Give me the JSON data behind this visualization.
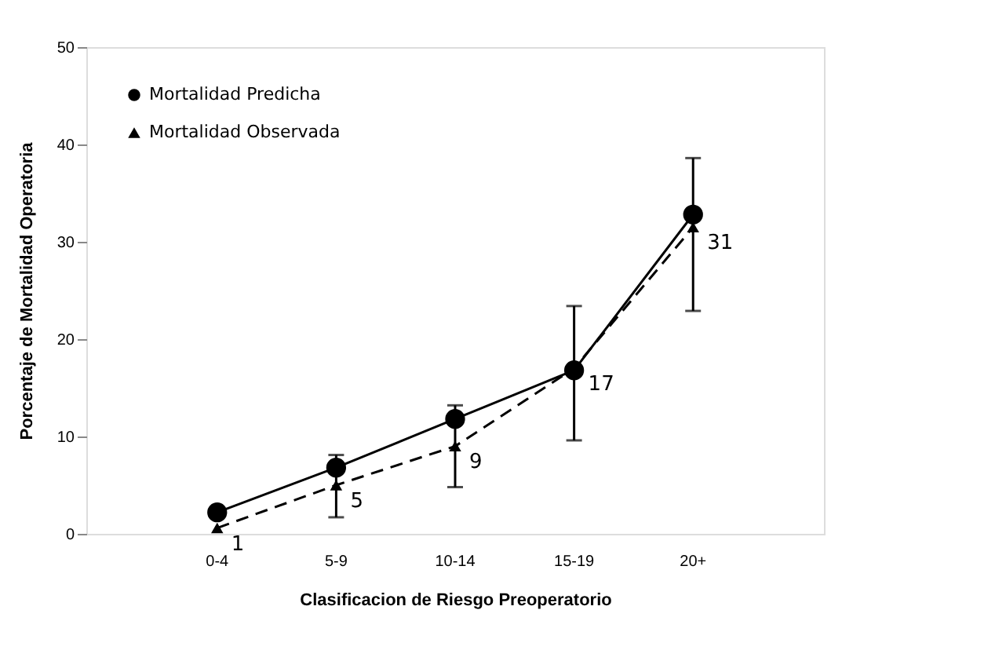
{
  "chart_data": {
    "type": "line",
    "xlabel": "Clasificacion de Riesgo Preoperatorio",
    "ylabel": "Porcentaje de Mortalidad Operatoria",
    "categories": [
      "0-4",
      "5-9",
      "10-14",
      "15-19",
      "20+"
    ],
    "series": [
      {
        "name": "Mortalidad Predicha",
        "color": "#000000",
        "marker": "circle",
        "line_style": "solid",
        "values": [
          2.2,
          6.8,
          11.8,
          16.8,
          32.8
        ]
      },
      {
        "name": "Mortalidad Observada",
        "color": "#000000",
        "marker": "triangle",
        "line_style": "dashed",
        "values": [
          0.6,
          5,
          9,
          17,
          31.5
        ],
        "errors": [
          null,
          [
            1.7,
            8.1
          ],
          [
            4.8,
            13.2
          ],
          [
            9.6,
            23.4
          ],
          [
            22.9,
            38.6
          ]
        ],
        "value_labels": [
          "1",
          "5",
          "9",
          "17",
          "31"
        ]
      }
    ],
    "ylim": [
      0,
      50
    ],
    "yticks": [
      0,
      10,
      20,
      30,
      40,
      50
    ],
    "grid": false,
    "legend": "top left"
  }
}
